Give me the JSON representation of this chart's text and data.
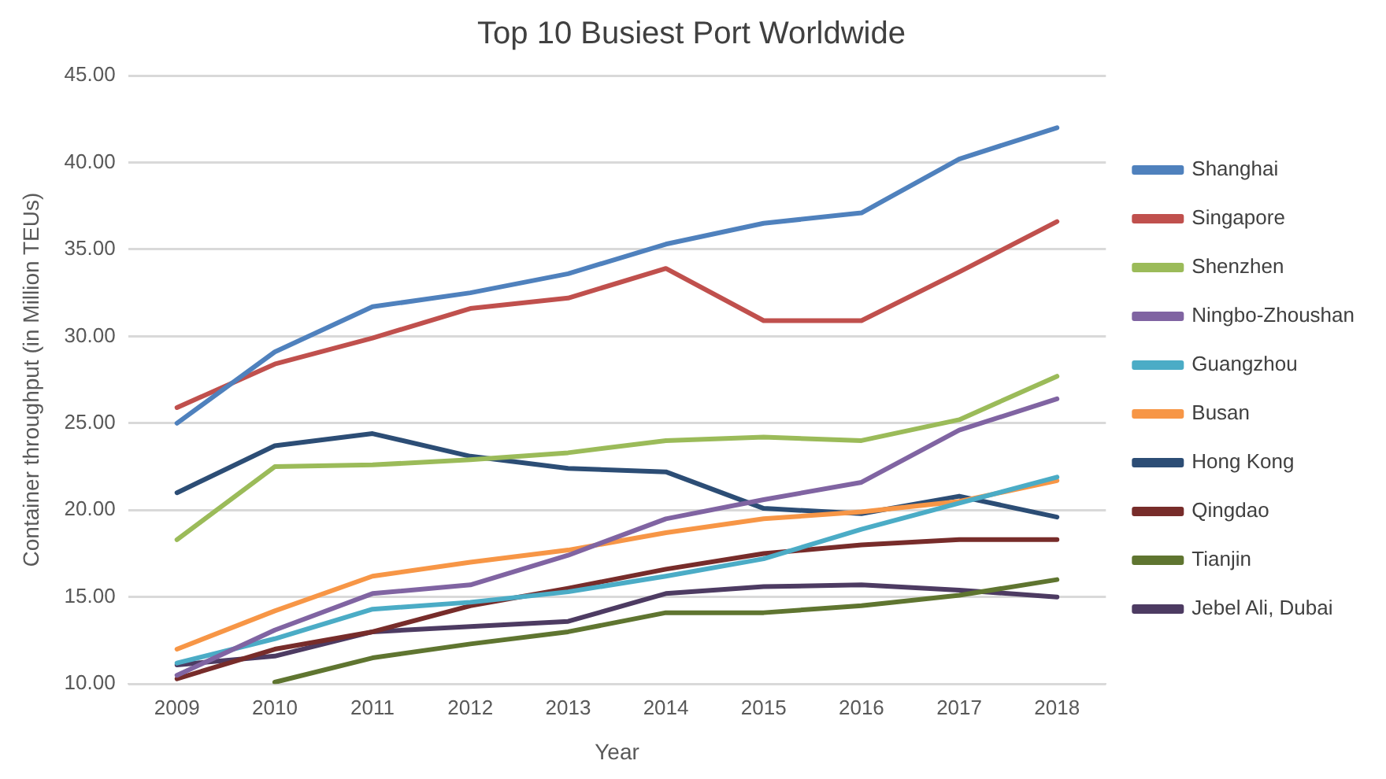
{
  "chart_data": {
    "type": "line",
    "title": "Top 10 Busiest Port Worldwide",
    "xlabel": "Year",
    "ylabel": "Container throughput (in Million TEUs)",
    "categories": [
      "2009",
      "2010",
      "2011",
      "2012",
      "2013",
      "2014",
      "2015",
      "2016",
      "2017",
      "2018"
    ],
    "series": [
      {
        "name": "Shanghai",
        "color": "#4f81bd",
        "values": [
          25.0,
          29.1,
          31.7,
          32.5,
          33.6,
          35.3,
          36.5,
          37.1,
          40.2,
          42.0
        ]
      },
      {
        "name": "Singapore",
        "color": "#c0504d",
        "values": [
          25.9,
          28.4,
          29.9,
          31.6,
          32.2,
          33.9,
          30.9,
          30.9,
          33.7,
          36.6
        ]
      },
      {
        "name": "Shenzhen",
        "color": "#9bbb59",
        "values": [
          18.3,
          22.5,
          22.6,
          22.9,
          23.3,
          24.0,
          24.2,
          24.0,
          25.2,
          27.7
        ]
      },
      {
        "name": "Ningbo-Zhoushan",
        "color": "#8064a2",
        "values": [
          10.5,
          13.1,
          15.2,
          15.7,
          17.4,
          19.5,
          20.6,
          21.6,
          24.6,
          26.4
        ]
      },
      {
        "name": "Guangzhou",
        "color": "#4bacc6",
        "values": [
          11.2,
          12.6,
          14.3,
          14.7,
          15.3,
          16.2,
          17.2,
          18.9,
          20.4,
          21.9
        ]
      },
      {
        "name": "Busan",
        "color": "#f79646",
        "values": [
          12.0,
          14.2,
          16.2,
          17.0,
          17.7,
          18.7,
          19.5,
          19.9,
          20.5,
          21.7
        ]
      },
      {
        "name": "Hong Kong",
        "color": "#2c4d75",
        "values": [
          21.0,
          23.7,
          24.4,
          23.1,
          22.4,
          22.2,
          20.1,
          19.8,
          20.8,
          19.6
        ]
      },
      {
        "name": "Qingdao",
        "color": "#772c2a",
        "values": [
          10.3,
          12.0,
          13.0,
          14.5,
          15.5,
          16.6,
          17.5,
          18.0,
          18.3,
          18.3
        ]
      },
      {
        "name": "Tianjin",
        "color": "#5f7530",
        "values": [
          null,
          10.1,
          11.5,
          12.3,
          13.0,
          14.1,
          14.1,
          14.5,
          15.1,
          16.0
        ]
      },
      {
        "name": "Jebel Ali, Dubai",
        "color": "#4d3b62",
        "values": [
          11.1,
          11.6,
          13.0,
          13.3,
          13.6,
          15.2,
          15.6,
          15.7,
          15.4,
          15.0
        ]
      }
    ],
    "ylim": [
      10,
      45
    ],
    "yticks": [
      {
        "value": 10,
        "label": "10.00"
      },
      {
        "value": 15,
        "label": "15.00"
      },
      {
        "value": 20,
        "label": "20.00"
      },
      {
        "value": 25,
        "label": "25.00"
      },
      {
        "value": 30,
        "label": "30.00"
      },
      {
        "value": 35,
        "label": "35.00"
      },
      {
        "value": 40,
        "label": "40.00"
      },
      {
        "value": 45,
        "label": "45.00"
      }
    ],
    "grid": "y",
    "legend": "right",
    "marker": "none",
    "line_style": "solid"
  }
}
